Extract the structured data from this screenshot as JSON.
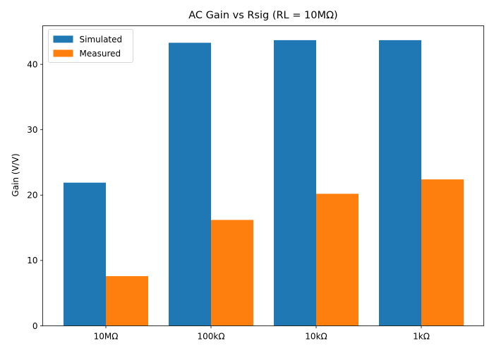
{
  "chart_data": {
    "type": "bar",
    "title": "AC Gain vs Rsig (RL = 10MΩ)",
    "xlabel": "",
    "ylabel": "Gain (V/V)",
    "categories": [
      "10MΩ",
      "100kΩ",
      "10kΩ",
      "1kΩ"
    ],
    "series": [
      {
        "name": "Simulated",
        "color": "#1f77b4",
        "values": [
          21.9,
          43.3,
          43.7,
          43.7
        ]
      },
      {
        "name": "Measured",
        "color": "#ff7f0e",
        "values": [
          7.6,
          16.2,
          20.2,
          22.4
        ]
      }
    ],
    "ylim": [
      0,
      45.9
    ],
    "yticks": [
      0,
      10,
      20,
      30,
      40
    ],
    "grid": false,
    "legend_position": "top-left"
  }
}
